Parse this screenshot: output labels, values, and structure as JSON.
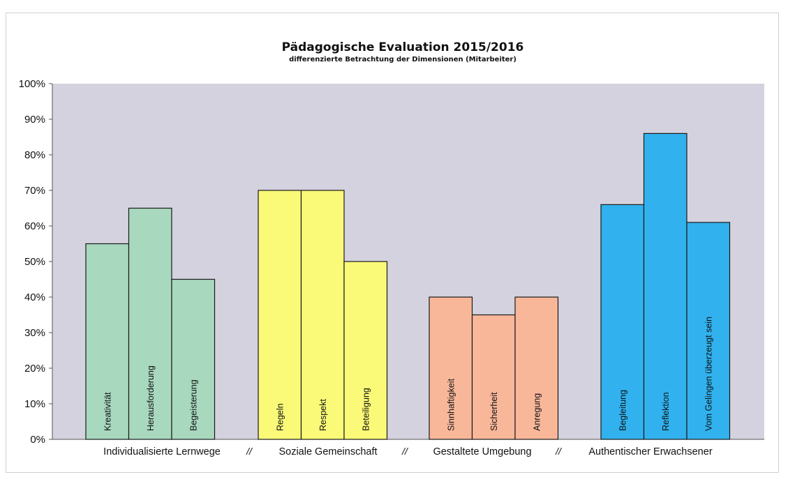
{
  "chart_data": {
    "type": "bar",
    "title": "Pädagogische Evaluation 2015/2016",
    "subtitle": "differenzierte Betrachtung der Dimensionen (Mitarbeiter)",
    "ylim": [
      0,
      1
    ],
    "yticks": [
      "0%",
      "10%",
      "20%",
      "30%",
      "40%",
      "50%",
      "60%",
      "70%",
      "80%",
      "90%",
      "100%"
    ],
    "group_separator": "//",
    "groups": [
      {
        "name": "Individualisierte Lernwege",
        "color": "#a8d8be",
        "categories": [
          "Kreativität",
          "Herausforderung",
          "Begeisterung"
        ],
        "values": [
          0.55,
          0.65,
          0.45
        ]
      },
      {
        "name": "Soziale Gemeinschaft",
        "color": "#fafa78",
        "categories": [
          "Regeln",
          "Respekt",
          "Beteiligung"
        ],
        "values": [
          0.7,
          0.7,
          0.5
        ]
      },
      {
        "name": "Gestaltete Umgebung",
        "color": "#f9b79a",
        "categories": [
          "Sinnhaftigkeit",
          "Sicherheit",
          "Anregung"
        ],
        "values": [
          0.4,
          0.35,
          0.4
        ]
      },
      {
        "name": "Authentischer Erwachsener",
        "color": "#31b2ee",
        "categories": [
          "Begleitung",
          "Reflektion",
          "Vom Gelingen  überzeugt sein"
        ],
        "values": [
          0.66,
          0.86,
          0.61
        ]
      }
    ],
    "plot_background": "#d4d2de",
    "grid": false,
    "legend": "none"
  }
}
